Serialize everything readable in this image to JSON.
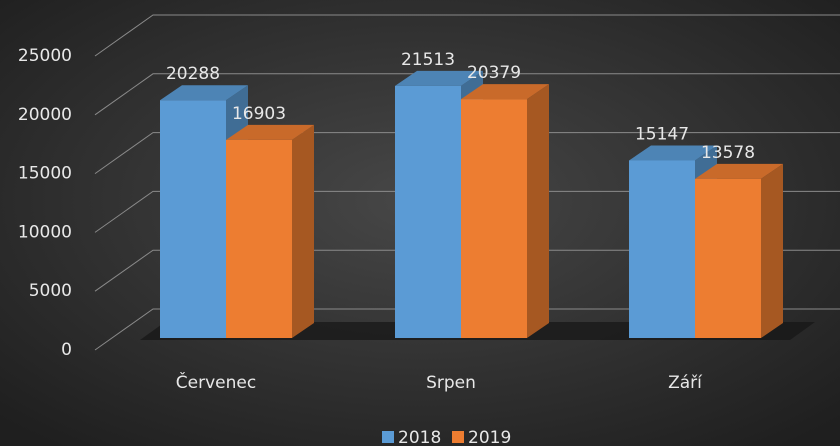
{
  "chart_data": {
    "type": "bar3d",
    "categories": [
      "Červenec",
      "Srpen",
      "Září"
    ],
    "series": [
      {
        "name": "2018",
        "color": "#5b9bd5",
        "values": [
          20288,
          21513,
          15147
        ]
      },
      {
        "name": "2019",
        "color": "#ed7d31",
        "values": [
          16903,
          20379,
          13578
        ]
      }
    ],
    "ylim": [
      0,
      25000
    ],
    "yticks": [
      0,
      5000,
      10000,
      15000,
      20000,
      25000
    ],
    "grid": true,
    "legend": "bottom"
  }
}
